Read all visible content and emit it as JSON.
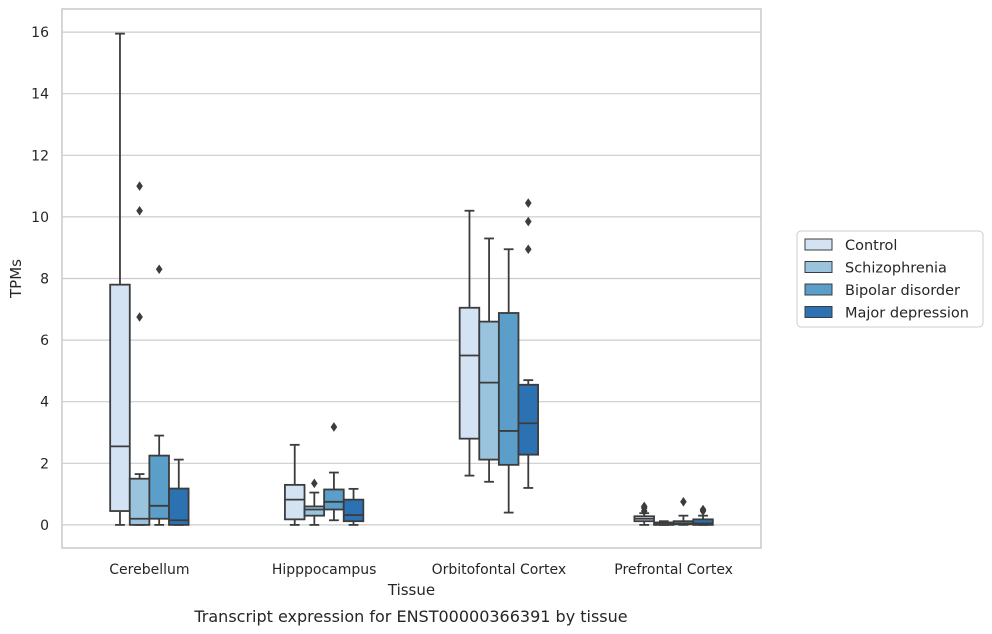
{
  "chart_data": {
    "type": "box",
    "caption": "Transcript expression for ENST00000366391 by tissue",
    "xlabel": "Tissue",
    "ylabel": "TPMs",
    "ylim": [
      -0.75,
      16.75
    ],
    "yticks": [
      0,
      2,
      4,
      6,
      8,
      10,
      12,
      14,
      16
    ],
    "grid": "horizontal",
    "legend_position": "right",
    "categories": [
      "Cerebellum",
      "Hipppocampus",
      "Orbitofontal Cortex",
      "Prefrontal Cortex"
    ],
    "series": [
      {
        "name": "Control",
        "color": "#d3e3f3",
        "boxes": [
          {
            "whisker_low": 0,
            "q1": 0.45,
            "median": 2.55,
            "q3": 7.8,
            "whisker_high": 15.95,
            "outliers": []
          },
          {
            "whisker_low": 0,
            "q1": 0.18,
            "median": 0.82,
            "q3": 1.3,
            "whisker_high": 2.6,
            "outliers": []
          },
          {
            "whisker_low": 1.6,
            "q1": 2.8,
            "median": 5.5,
            "q3": 7.05,
            "whisker_high": 10.2,
            "outliers": []
          },
          {
            "whisker_low": 0,
            "q1": 0.12,
            "median": 0.2,
            "q3": 0.28,
            "whisker_high": 0.38,
            "outliers": [
              0.45,
              0.55,
              0.6
            ]
          }
        ]
      },
      {
        "name": "Schizophrenia",
        "color": "#9ac3dd",
        "boxes": [
          {
            "whisker_low": 0,
            "q1": 0,
            "median": 0.2,
            "q3": 1.5,
            "whisker_high": 1.65,
            "outliers": [
              6.75,
              10.2,
              11.0
            ]
          },
          {
            "whisker_low": 0,
            "q1": 0.3,
            "median": 0.5,
            "q3": 0.6,
            "whisker_high": 1.05,
            "outliers": [
              1.35
            ]
          },
          {
            "whisker_low": 1.4,
            "q1": 2.12,
            "median": 4.62,
            "q3": 6.6,
            "whisker_high": 9.3,
            "outliers": []
          },
          {
            "whisker_low": 0,
            "q1": 0,
            "median": 0.03,
            "q3": 0.08,
            "whisker_high": 0.12,
            "outliers": []
          }
        ]
      },
      {
        "name": "Bipolar disorder",
        "color": "#5a9ec9",
        "boxes": [
          {
            "whisker_low": 0,
            "q1": 0.2,
            "median": 0.62,
            "q3": 2.25,
            "whisker_high": 2.9,
            "outliers": [
              8.3
            ]
          },
          {
            "whisker_low": 0.15,
            "q1": 0.5,
            "median": 0.75,
            "q3": 1.15,
            "whisker_high": 1.7,
            "outliers": [
              3.18
            ]
          },
          {
            "whisker_low": 0.4,
            "q1": 1.95,
            "median": 3.05,
            "q3": 6.88,
            "whisker_high": 8.95,
            "outliers": []
          },
          {
            "whisker_low": 0,
            "q1": 0.02,
            "median": 0.05,
            "q3": 0.12,
            "whisker_high": 0.3,
            "outliers": [
              0.75
            ]
          }
        ]
      },
      {
        "name": "Major depression",
        "color": "#2c71b2",
        "boxes": [
          {
            "whisker_low": 0,
            "q1": 0,
            "median": 0.15,
            "q3": 1.18,
            "whisker_high": 2.12,
            "outliers": []
          },
          {
            "whisker_low": 0,
            "q1": 0.12,
            "median": 0.32,
            "q3": 0.82,
            "whisker_high": 1.17,
            "outliers": []
          },
          {
            "whisker_low": 1.2,
            "q1": 2.28,
            "median": 3.3,
            "q3": 4.55,
            "whisker_high": 4.7,
            "outliers": [
              8.95,
              9.85,
              10.45
            ]
          },
          {
            "whisker_low": 0,
            "q1": 0,
            "median": 0.05,
            "q3": 0.18,
            "whisker_high": 0.3,
            "outliers": [
              0.45,
              0.5
            ]
          }
        ]
      }
    ]
  }
}
